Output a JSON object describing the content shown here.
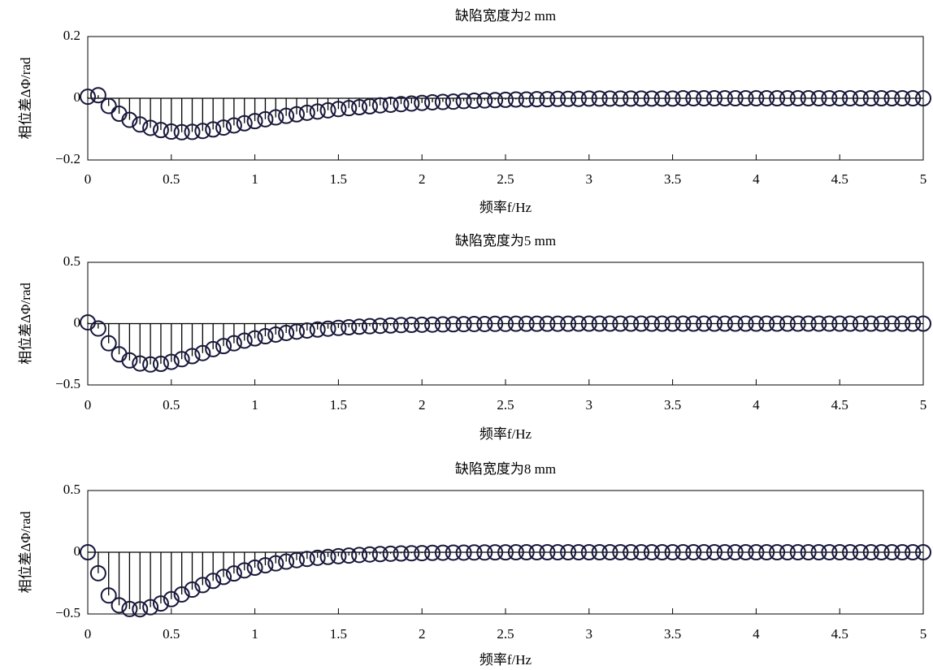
{
  "colors": {
    "marker_edge": "#17183a",
    "stem": "#000000",
    "axes": "#000000",
    "background": "#ffffff"
  },
  "chart_data": [
    {
      "type": "scatter",
      "stem": true,
      "marker": "open-circle",
      "title": "缺陷宽度为2 mm",
      "xlabel": "频率f/Hz",
      "ylabel": "相位差ΔΦ/rad",
      "grid": false,
      "xlim": [
        0,
        5
      ],
      "ylim": [
        -0.2,
        0.2
      ],
      "xticks": [
        0,
        0.5,
        1,
        1.5,
        2,
        2.5,
        3,
        3.5,
        4,
        4.5,
        5
      ],
      "xtick_labels": [
        "0",
        "0.5",
        "1",
        "1.5",
        "2",
        "2.5",
        "3",
        "3.5",
        "4",
        "4.5",
        "5"
      ],
      "yticks": [
        0.2,
        0,
        -0.2
      ],
      "ytick_labels": [
        "0.2",
        "0",
        "−0.2"
      ],
      "x": [
        0,
        0.0625,
        0.125,
        0.1875,
        0.25,
        0.3125,
        0.375,
        0.4375,
        0.5,
        0.5625,
        0.625,
        0.6875,
        0.75,
        0.8125,
        0.875,
        0.9375,
        1,
        1.0625,
        1.125,
        1.1875,
        1.25,
        1.3125,
        1.375,
        1.4375,
        1.5,
        1.5625,
        1.625,
        1.6875,
        1.75,
        1.8125,
        1.875,
        1.9375,
        2,
        2.0625,
        2.125,
        2.1875,
        2.25,
        2.3125,
        2.375,
        2.4375,
        2.5,
        2.5625,
        2.625,
        2.6875,
        2.75,
        2.8125,
        2.875,
        2.9375,
        3,
        3.0625,
        3.125,
        3.1875,
        3.25,
        3.3125,
        3.375,
        3.4375,
        3.5,
        3.5625,
        3.625,
        3.6875,
        3.75,
        3.8125,
        3.875,
        3.9375,
        4,
        4.0625,
        4.125,
        4.1875,
        4.25,
        4.3125,
        4.375,
        4.4375,
        4.5,
        4.5625,
        4.625,
        4.6875,
        4.75,
        4.8125,
        4.875,
        4.9375,
        5
      ],
      "y": [
        0.005,
        0.01,
        -0.025,
        -0.05,
        -0.07,
        -0.085,
        -0.096,
        -0.103,
        -0.108,
        -0.11,
        -0.109,
        -0.106,
        -0.101,
        -0.095,
        -0.088,
        -0.081,
        -0.074,
        -0.068,
        -0.062,
        -0.057,
        -0.052,
        -0.047,
        -0.043,
        -0.039,
        -0.035,
        -0.032,
        -0.029,
        -0.026,
        -0.023,
        -0.021,
        -0.019,
        -0.017,
        -0.015,
        -0.013,
        -0.012,
        -0.011,
        -0.009,
        -0.008,
        -0.007,
        -0.006,
        -0.005,
        -0.004,
        -0.004,
        -0.003,
        -0.003,
        -0.002,
        -0.002,
        -0.002,
        -0.001,
        -0.001,
        -0.001,
        -0.001,
        -0.001,
        -0.001,
        -0.001,
        -0.001,
        -0.001,
        0,
        0,
        0,
        0,
        0,
        0,
        0,
        0,
        0,
        0,
        0,
        0,
        0,
        0,
        0,
        0,
        0,
        0,
        0,
        0,
        0,
        0,
        0,
        0
      ]
    },
    {
      "type": "scatter",
      "stem": true,
      "marker": "open-circle",
      "title": "缺陷宽度为5 mm",
      "xlabel": "频率f/Hz",
      "ylabel": "相位差ΔΦ/rad",
      "grid": false,
      "xlim": [
        0,
        5
      ],
      "ylim": [
        -0.5,
        0.5
      ],
      "xticks": [
        0,
        0.5,
        1,
        1.5,
        2,
        2.5,
        3,
        3.5,
        4,
        4.5,
        5
      ],
      "xtick_labels": [
        "0",
        "0.5",
        "1",
        "1.5",
        "2",
        "2.5",
        "3",
        "3.5",
        "4",
        "4.5",
        "5"
      ],
      "yticks": [
        0.5,
        0,
        -0.5
      ],
      "ytick_labels": [
        "0.5",
        "0",
        "−0.5"
      ],
      "x": [
        0,
        0.0625,
        0.125,
        0.1875,
        0.25,
        0.3125,
        0.375,
        0.4375,
        0.5,
        0.5625,
        0.625,
        0.6875,
        0.75,
        0.8125,
        0.875,
        0.9375,
        1,
        1.0625,
        1.125,
        1.1875,
        1.25,
        1.3125,
        1.375,
        1.4375,
        1.5,
        1.5625,
        1.625,
        1.6875,
        1.75,
        1.8125,
        1.875,
        1.9375,
        2,
        2.0625,
        2.125,
        2.1875,
        2.25,
        2.3125,
        2.375,
        2.4375,
        2.5,
        2.5625,
        2.625,
        2.6875,
        2.75,
        2.8125,
        2.875,
        2.9375,
        3,
        3.0625,
        3.125,
        3.1875,
        3.25,
        3.3125,
        3.375,
        3.4375,
        3.5,
        3.5625,
        3.625,
        3.6875,
        3.75,
        3.8125,
        3.875,
        3.9375,
        4,
        4.0625,
        4.125,
        4.1875,
        4.25,
        4.3125,
        4.375,
        4.4375,
        4.5,
        4.5625,
        4.625,
        4.6875,
        4.75,
        4.8125,
        4.875,
        4.9375,
        5
      ],
      "y": [
        0.01,
        -0.04,
        -0.16,
        -0.25,
        -0.3,
        -0.325,
        -0.333,
        -0.328,
        -0.312,
        -0.29,
        -0.265,
        -0.24,
        -0.208,
        -0.183,
        -0.16,
        -0.139,
        -0.12,
        -0.103,
        -0.089,
        -0.076,
        -0.065,
        -0.056,
        -0.048,
        -0.041,
        -0.035,
        -0.03,
        -0.025,
        -0.021,
        -0.018,
        -0.015,
        -0.012,
        -0.01,
        -0.009,
        -0.008,
        -0.006,
        -0.005,
        -0.004,
        -0.003,
        -0.003,
        -0.002,
        -0.002,
        -0.001,
        -0.001,
        -0.001,
        -0.001,
        -0.001,
        -0.001,
        0,
        0,
        0,
        0,
        0,
        0,
        0,
        0,
        0,
        0,
        0,
        0,
        0,
        0,
        0,
        0,
        0,
        0,
        0,
        0,
        0,
        0,
        0,
        0,
        0,
        0,
        0,
        0,
        0,
        0,
        0,
        0,
        0,
        0
      ]
    },
    {
      "type": "scatter",
      "stem": true,
      "marker": "open-circle",
      "title": "缺陷宽度为8 mm",
      "xlabel": "频率f/Hz",
      "ylabel": "相位差ΔΦ/rad",
      "grid": false,
      "xlim": [
        0,
        5
      ],
      "ylim": [
        -0.5,
        0.5
      ],
      "xticks": [
        0,
        0.5,
        1,
        1.5,
        2,
        2.5,
        3,
        3.5,
        4,
        4.5,
        5
      ],
      "xtick_labels": [
        "0",
        "0.5",
        "1",
        "1.5",
        "2",
        "2.5",
        "3",
        "3.5",
        "4",
        "4.5",
        "5"
      ],
      "yticks": [
        0.5,
        0,
        -0.5
      ],
      "ytick_labels": [
        "0.5",
        "0",
        "−0.5"
      ],
      "x": [
        0,
        0.0625,
        0.125,
        0.1875,
        0.25,
        0.3125,
        0.375,
        0.4375,
        0.5,
        0.5625,
        0.625,
        0.6875,
        0.75,
        0.8125,
        0.875,
        0.9375,
        1,
        1.0625,
        1.125,
        1.1875,
        1.25,
        1.3125,
        1.375,
        1.4375,
        1.5,
        1.5625,
        1.625,
        1.6875,
        1.75,
        1.8125,
        1.875,
        1.9375,
        2,
        2.0625,
        2.125,
        2.1875,
        2.25,
        2.3125,
        2.375,
        2.4375,
        2.5,
        2.5625,
        2.625,
        2.6875,
        2.75,
        2.8125,
        2.875,
        2.9375,
        3,
        3.0625,
        3.125,
        3.1875,
        3.25,
        3.3125,
        3.375,
        3.4375,
        3.5,
        3.5625,
        3.625,
        3.6875,
        3.75,
        3.8125,
        3.875,
        3.9375,
        4,
        4.0625,
        4.125,
        4.1875,
        4.25,
        4.3125,
        4.375,
        4.4375,
        4.5,
        4.5625,
        4.625,
        4.6875,
        4.75,
        4.8125,
        4.875,
        4.9375,
        5
      ],
      "y": [
        0,
        -0.17,
        -0.35,
        -0.43,
        -0.46,
        -0.462,
        -0.445,
        -0.415,
        -0.38,
        -0.342,
        -0.303,
        -0.266,
        -0.232,
        -0.2,
        -0.172,
        -0.147,
        -0.125,
        -0.106,
        -0.09,
        -0.076,
        -0.064,
        -0.054,
        -0.045,
        -0.038,
        -0.032,
        -0.027,
        -0.022,
        -0.018,
        -0.015,
        -0.012,
        -0.01,
        -0.008,
        -0.007,
        -0.005,
        -0.004,
        -0.003,
        -0.003,
        -0.002,
        -0.002,
        -0.001,
        -0.001,
        0,
        0,
        0,
        0,
        0,
        0,
        0,
        0,
        0,
        0,
        0,
        0,
        0,
        0,
        0,
        0,
        0,
        0,
        0,
        0,
        0,
        0,
        0,
        0,
        0,
        0,
        0,
        0,
        0,
        0,
        0,
        0,
        0,
        0,
        0,
        0,
        0,
        0,
        0,
        0
      ]
    }
  ]
}
